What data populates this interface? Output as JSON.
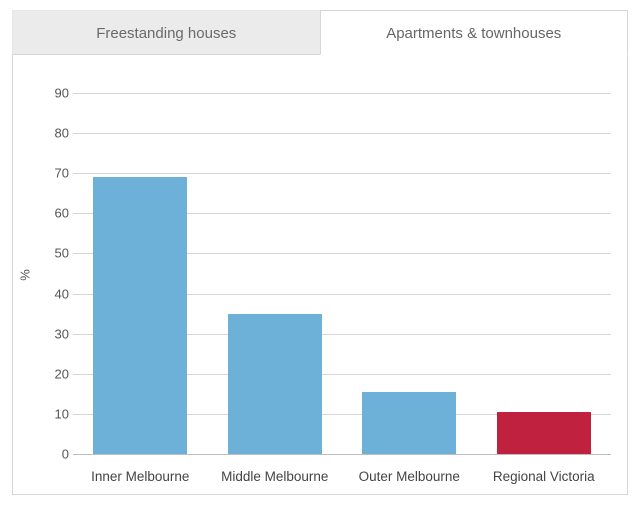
{
  "tabs": [
    {
      "label": "Freestanding houses",
      "active": false
    },
    {
      "label": "Apartments & townhouses",
      "active": true
    }
  ],
  "chart": {
    "type": "bar",
    "ylabel": "%",
    "ylim": [
      0,
      95
    ],
    "ytick_step": 10,
    "categories": [
      "Inner Melbourne",
      "Middle Melbourne",
      "Outer Melbourne",
      "Regional Victoria"
    ],
    "values": [
      69,
      35,
      15.5,
      10.5
    ],
    "bar_colors": [
      "#6db1d8",
      "#6db1d8",
      "#6db1d8",
      "#c0213e"
    ],
    "bar_width_pct": 70,
    "background_color": "#ffffff",
    "grid_color": "#d6d6d6",
    "baseline_color": "#bdbdbd",
    "label_fontsize": 13,
    "xlabel_fontsize": 13.5,
    "label_color": "#555555",
    "tab_inactive_bg": "#ebebeb",
    "tab_active_bg": "#ffffff",
    "tab_border_color": "#d6d6d6",
    "tab_text_color": "#6a6a6a"
  }
}
